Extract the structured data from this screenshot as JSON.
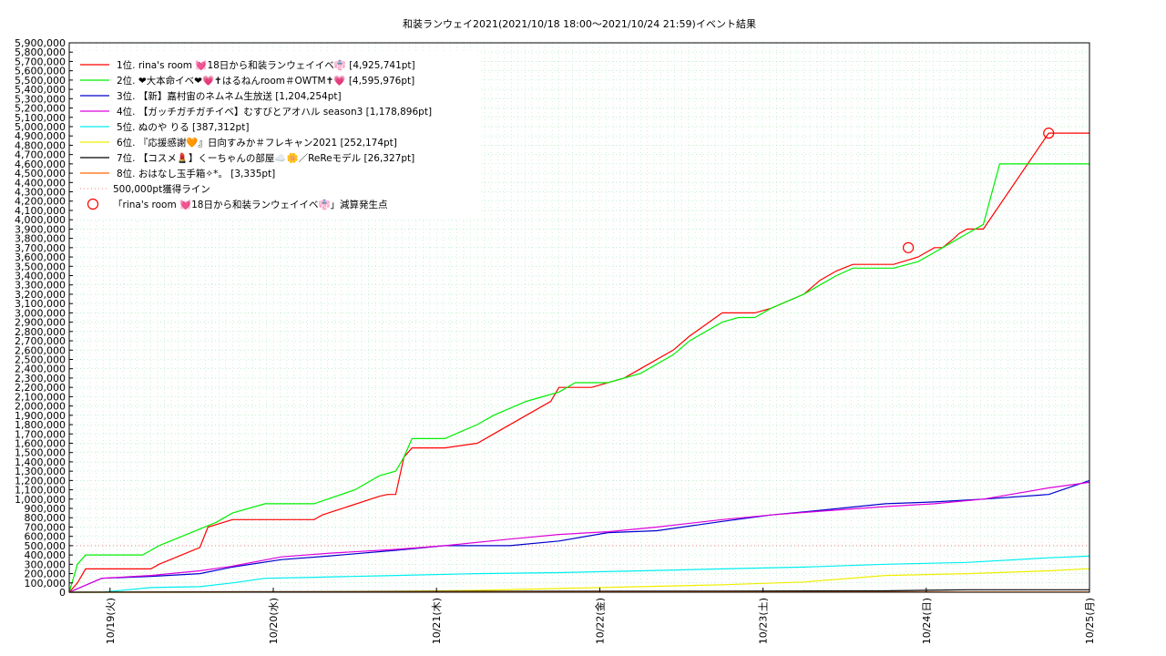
{
  "chart_data": {
    "type": "line",
    "title": "和装ランウェイ2021(2021/10/18 18:00〜2021/10/24 21:59)",
    "subtitle": "イベント結果",
    "xlabel": "",
    "ylabel": "",
    "ylim": [
      0,
      5900000
    ],
    "y_tick_step": 100000,
    "x_tick_labels": [
      "10/19(火)",
      "10/20(水)",
      "10/21(木)",
      "10/22(金)",
      "10/23(土)",
      "10/24(日)",
      "10/25(月)"
    ],
    "x_range_days": [
      0,
      6.25
    ],
    "x_tick_positions_days": [
      0.25,
      1.25,
      2.25,
      3.25,
      4.25,
      5.25,
      6.25
    ],
    "x_unit": "days since 2021/10/18 18:00",
    "grid": true,
    "legend_placement": "top-left",
    "threshold": {
      "label": "500,000pt獲得ライン",
      "value": 500000,
      "color": "#f08080"
    },
    "marker_label": "「rina's room 💓18日から和装ランウェイイベ👘」減算発生点",
    "markers": [
      {
        "x": 5.14,
        "y": 3700000
      },
      {
        "x": 6.0,
        "y": 4930000
      }
    ],
    "series": [
      {
        "name": "1位. rina's room 💓18日から和装ランウェイイベ👘 [4,925,741pt]",
        "color": "#ff0000",
        "x": [
          0,
          0.05,
          0.1,
          0.5,
          0.55,
          0.8,
          0.85,
          1.0,
          1.1,
          1.5,
          1.55,
          1.9,
          1.95,
          2.0,
          2.05,
          2.1,
          2.2,
          2.3,
          2.5,
          2.6,
          2.8,
          2.95,
          3.0,
          3.1,
          3.2,
          3.4,
          3.5,
          3.7,
          3.8,
          4.0,
          4.1,
          4.2,
          4.3,
          4.5,
          4.6,
          4.7,
          4.8,
          4.9,
          5.05,
          5.2,
          5.3,
          5.35,
          5.42,
          5.45,
          5.5,
          5.6,
          6.0,
          6.25
        ],
        "values": [
          0,
          100000,
          250000,
          250000,
          300000,
          480000,
          700000,
          780000,
          780000,
          780000,
          830000,
          1030000,
          1050000,
          1050000,
          1450000,
          1550000,
          1550000,
          1550000,
          1600000,
          1700000,
          1900000,
          2050000,
          2200000,
          2200000,
          2200000,
          2300000,
          2400000,
          2600000,
          2750000,
          3000000,
          3000000,
          3000000,
          3050000,
          3200000,
          3350000,
          3450000,
          3520000,
          3520000,
          3520000,
          3600000,
          3700000,
          3700000,
          3800000,
          3850000,
          3900000,
          3900000,
          4930000,
          4930000
        ]
      },
      {
        "name": "2位. ❤大本命イベ❤💗✝はるねんroom＃OWTM✝💗 [4,595,976pt]",
        "color": "#00ee00",
        "x": [
          0,
          0.05,
          0.1,
          0.45,
          0.55,
          0.9,
          1.0,
          1.2,
          1.4,
          1.5,
          1.75,
          1.9,
          2.0,
          2.05,
          2.1,
          2.3,
          2.5,
          2.6,
          2.8,
          3.0,
          3.1,
          3.3,
          3.5,
          3.7,
          3.8,
          4.0,
          4.1,
          4.2,
          4.3,
          4.5,
          4.6,
          4.7,
          4.8,
          4.9,
          5.05,
          5.2,
          5.3,
          5.4,
          5.5,
          5.6,
          5.7,
          6.0,
          6.25
        ],
        "values": [
          0,
          300000,
          400000,
          400000,
          500000,
          750000,
          850000,
          950000,
          950000,
          950000,
          1100000,
          1250000,
          1300000,
          1450000,
          1650000,
          1650000,
          1800000,
          1900000,
          2050000,
          2150000,
          2250000,
          2250000,
          2350000,
          2550000,
          2700000,
          2900000,
          2950000,
          2950000,
          3050000,
          3200000,
          3300000,
          3400000,
          3480000,
          3480000,
          3480000,
          3550000,
          3650000,
          3750000,
          3850000,
          3950000,
          4600000,
          4600000,
          4600000
        ]
      },
      {
        "name": "3位. 【新】嘉村宙のネムネム生放送 [1,204,254pt]",
        "color": "#0000cc",
        "x": [
          0,
          0.2,
          0.5,
          0.8,
          1.0,
          1.3,
          1.6,
          2.0,
          2.3,
          2.7,
          3.0,
          3.3,
          3.6,
          4.0,
          4.3,
          4.6,
          5.0,
          5.3,
          5.6,
          6.0,
          6.25
        ],
        "values": [
          0,
          150000,
          170000,
          200000,
          270000,
          350000,
          390000,
          450000,
          500000,
          500000,
          550000,
          640000,
          660000,
          760000,
          830000,
          880000,
          950000,
          970000,
          1000000,
          1050000,
          1200000
        ]
      },
      {
        "name": "4位. 【ガッチガチガチイベ】むすびとアオハル season3 [1,178,896pt]",
        "color": "#dd00dd",
        "x": [
          0,
          0.2,
          0.5,
          0.8,
          1.0,
          1.3,
          1.6,
          2.0,
          2.3,
          2.7,
          3.0,
          3.3,
          3.6,
          4.0,
          4.3,
          4.6,
          5.0,
          5.3,
          5.6,
          6.0,
          6.25
        ],
        "values": [
          0,
          150000,
          180000,
          230000,
          280000,
          380000,
          420000,
          460000,
          500000,
          570000,
          620000,
          650000,
          700000,
          780000,
          830000,
          870000,
          920000,
          950000,
          1000000,
          1120000,
          1180000
        ]
      },
      {
        "name": "5位. ぬのや りる [387,312pt]",
        "color": "#00eeee",
        "x": [
          0,
          0.2,
          0.5,
          0.8,
          1.0,
          1.2,
          1.5,
          2.0,
          2.5,
          3.0,
          3.5,
          4.0,
          4.5,
          5.0,
          5.5,
          6.0,
          6.25
        ],
        "values": [
          0,
          0,
          50000,
          60000,
          100000,
          150000,
          160000,
          180000,
          200000,
          210000,
          230000,
          250000,
          270000,
          300000,
          320000,
          370000,
          387312
        ]
      },
      {
        "name": "6位. 『応援感謝🧡』日向すみか＃フレキャン2021 [252,174pt]",
        "color": "#eeee00",
        "x": [
          0,
          1.0,
          2.0,
          2.5,
          3.0,
          3.5,
          4.0,
          4.5,
          5.0,
          5.5,
          6.0,
          6.25
        ],
        "values": [
          0,
          0,
          10000,
          20000,
          40000,
          60000,
          80000,
          110000,
          180000,
          200000,
          230000,
          252174
        ]
      },
      {
        "name": "7位. 【コスメ💄】くーちゃんの部屋☁️🌼／ReReモデル [26,327pt]",
        "color": "#000000",
        "x": [
          0,
          1.0,
          2.0,
          3.0,
          4.0,
          5.0,
          5.5,
          6.25
        ],
        "values": [
          0,
          5000,
          8000,
          10000,
          12000,
          15000,
          26000,
          26327
        ]
      },
      {
        "name": "8位. おはなし玉手箱✧*。 [3,335pt]",
        "color": "#ff6600",
        "x": [
          0,
          1.0,
          3.0,
          6.25
        ],
        "values": [
          0,
          1000,
          3000,
          3335
        ]
      }
    ]
  }
}
